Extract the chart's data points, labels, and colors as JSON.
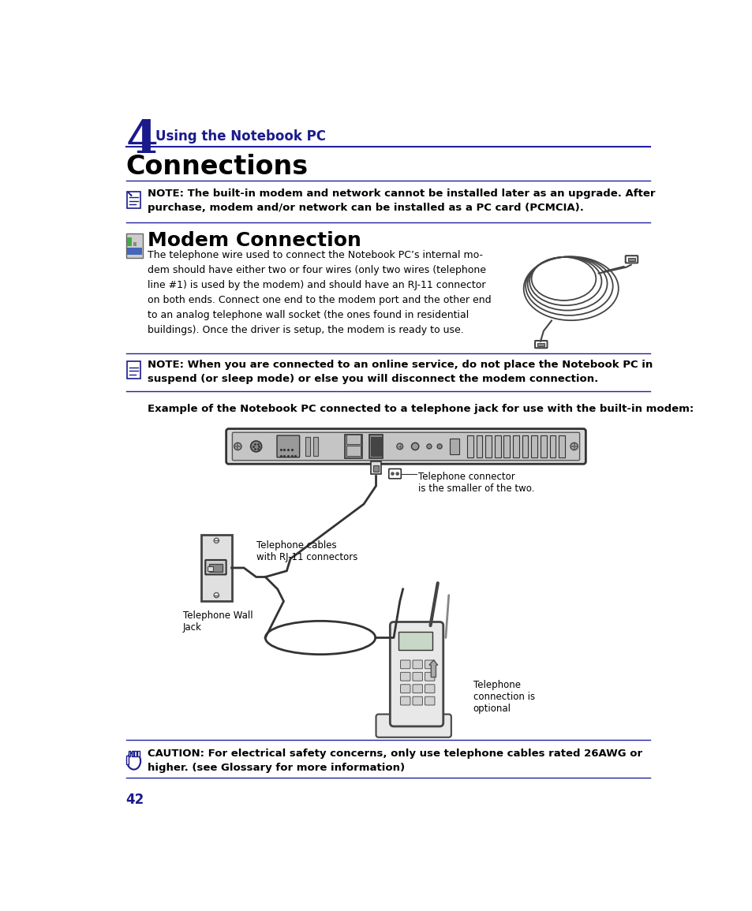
{
  "bg_color": "#ffffff",
  "page_number": "42",
  "chapter_number": "4",
  "chapter_title": "Using the Notebook PC",
  "page_title": "Connections",
  "section_title": "Modem Connection",
  "note1_text": "NOTE: The built-in modem and network cannot be installed later as an upgrade. After\npurchase, modem and/or network can be installed as a PC card (PCMCIA).",
  "note2_text": "NOTE: When you are connected to an online service, do not place the Notebook PC in\nsuspend (or sleep mode) or else you will disconnect the modem connection.",
  "body_text": "The telephone wire used to connect the Notebook PC’s internal mo-\ndem should have either two or four wires (only two wires (telephone\nline #1) is used by the modem) and should have an RJ-11 connector\non both ends. Connect one end to the modem port and the other end\nto an analog telephone wall socket (the ones found in residential\nbuildings). Once the driver is setup, the modem is ready to use.",
  "example_label": "Example of the Notebook PC connected to a telephone jack for use with the built-in modem:",
  "caution_text": "CAUTION: For electrical safety concerns, only use telephone cables rated 26AWG or\nhigher. (see Glossary for more information)",
  "label_connector": "Telephone connector\nis the smaller of the two.",
  "label_cables": "Telephone cables\nwith RJ-11 connectors",
  "label_wall": "Telephone Wall\nJack",
  "label_optional": "Telephone\nconnection is\noptional",
  "dark_blue": "#1a1a8c",
  "black": "#000000",
  "line_color": "#2020a0",
  "gray_line": "#555555"
}
